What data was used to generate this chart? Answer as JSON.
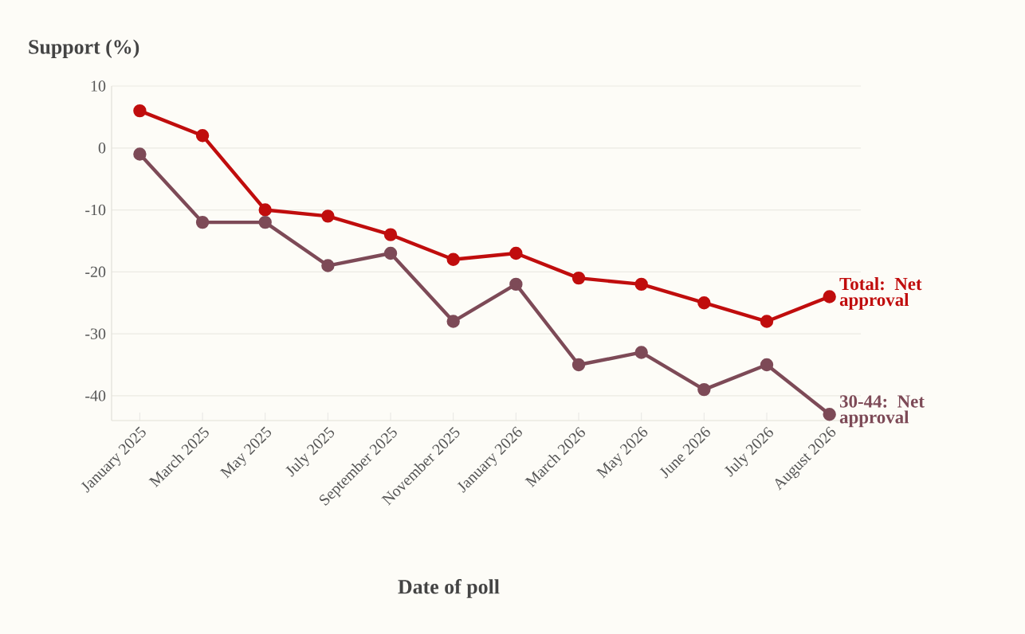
{
  "chart_data": {
    "type": "line",
    "ylabel": "Support (%)",
    "xlabel": "Date of poll",
    "categories": [
      "January 2025",
      "March 2025",
      "May 2025",
      "July 2025",
      "September 2025",
      "November 2025",
      "January 2026",
      "March 2026",
      "May 2026",
      "June 2026",
      "July 2026",
      "August 2026"
    ],
    "series": [
      {
        "name": "Total: Net approval",
        "color": "#c00d0d",
        "values": [
          6,
          2,
          -10,
          -11,
          -14,
          -18,
          -17,
          -21,
          -22,
          -25,
          -28,
          -24
        ]
      },
      {
        "name": "30-44: Net approval",
        "color": "#7d4a57",
        "values": [
          -1,
          -12,
          -12,
          -19,
          -17,
          -28,
          -22,
          -35,
          -33,
          -39,
          -35,
          -43
        ]
      }
    ],
    "ylim": [
      -44,
      10
    ],
    "yticks": [
      -40,
      -30,
      -20,
      -10,
      0,
      10
    ],
    "grid": "y",
    "legend": false,
    "marker": "circle",
    "line_style": "solid"
  }
}
